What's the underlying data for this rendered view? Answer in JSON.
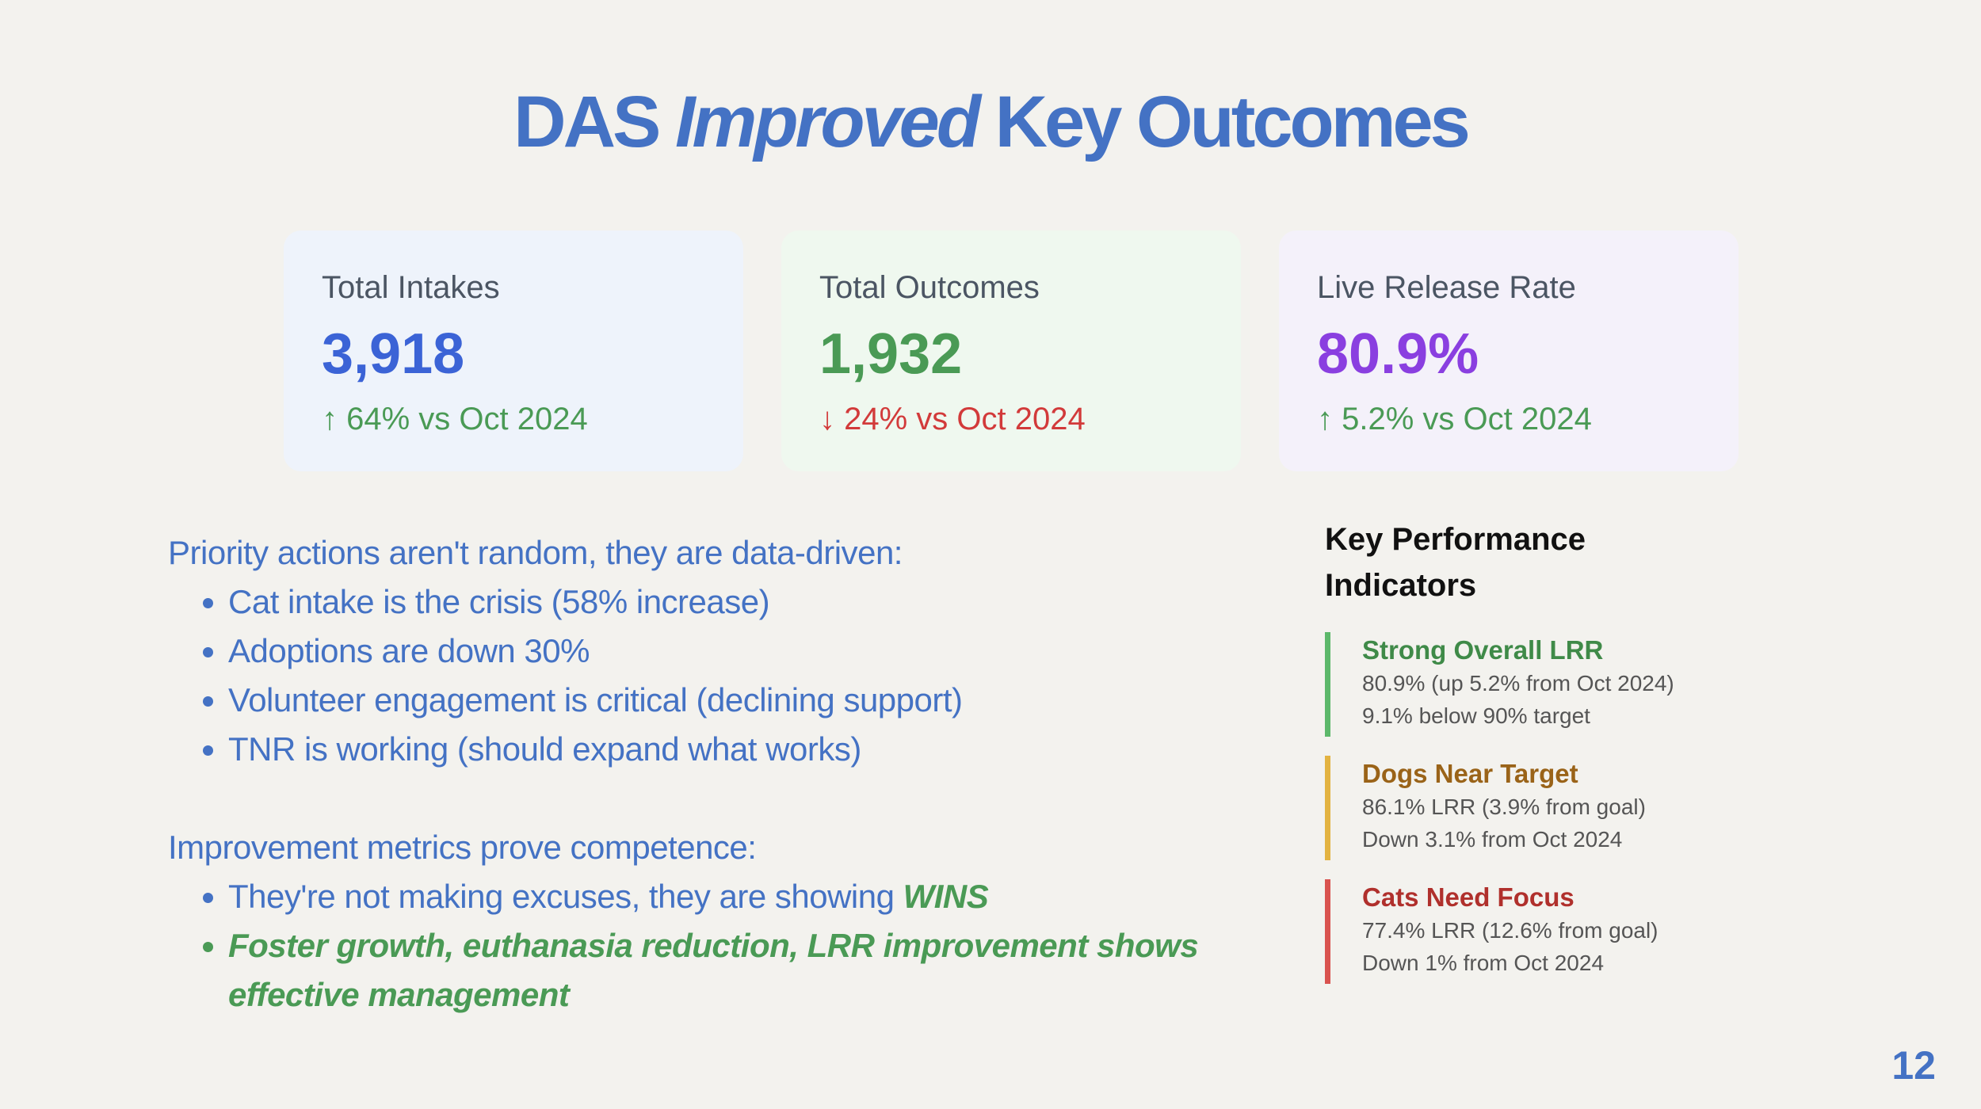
{
  "title": {
    "part1": "DAS",
    "emphasis": "Improved",
    "part2": "Key Outcomes"
  },
  "cards": [
    {
      "label": "Total Intakes",
      "value": "3,918",
      "arrow": "↑",
      "delta": "64% vs Oct 2024",
      "color": "#3b63d6"
    },
    {
      "label": "Total Outcomes",
      "value": "1,932",
      "arrow": "↓",
      "delta": "24% vs Oct 2024",
      "color": "#4a9a55"
    },
    {
      "label": "Live Release Rate",
      "value": "80.9%",
      "arrow": "↑",
      "delta": "5.2% vs Oct 2024",
      "color": "#8a3fe0"
    }
  ],
  "priorities": {
    "heading": "Priority actions aren't random, they are data-driven:",
    "items": [
      "Cat intake is the crisis (58% increase)",
      "Adoptions are down 30%",
      "Volunteer engagement is critical (declining support)",
      "TNR is working (should expand what works)"
    ]
  },
  "improvement": {
    "heading": "Improvement metrics prove competence:",
    "item1_text": "They're not making excuses, they are showing ",
    "item1_emph": "WINS",
    "item2": "Foster growth, euthanasia reduction, LRR improvement shows effective management"
  },
  "kpi": {
    "title": "Key Performance Indicators",
    "items": [
      {
        "heading": "Strong Overall LRR",
        "line1": "80.9% (up 5.2% from Oct 2024)",
        "line2": "9.1% below 90% target"
      },
      {
        "heading": "Dogs Near Target",
        "line1": "86.1% LRR (3.9% from goal)",
        "line2": "Down 3.1% from Oct 2024"
      },
      {
        "heading": "Cats Need Focus",
        "line1": "77.4% LRR (12.6% from goal)",
        "line2": "Down 1% from Oct 2024"
      }
    ]
  },
  "page_number": "12"
}
